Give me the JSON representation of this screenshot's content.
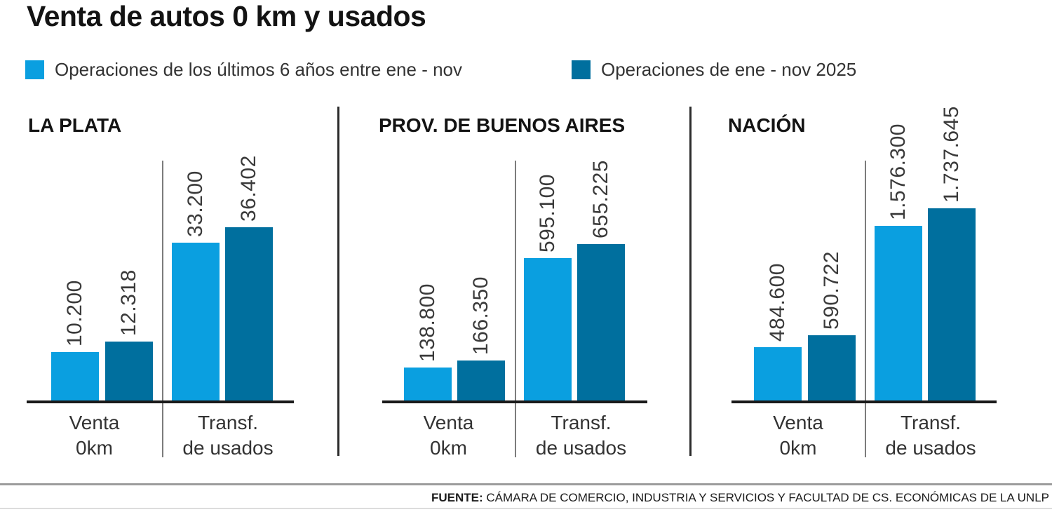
{
  "title": "Venta de autos 0 km y usados",
  "legend": [
    {
      "label": "Operaciones de los últimos 6 años entre ene - nov",
      "color": "#0a9fe0"
    },
    {
      "label": "Operaciones de ene - nov 2025",
      "color": "#006f9e"
    }
  ],
  "footer": {
    "source_label": "FUENTE:",
    "source_text": " CÁMARA DE COMERCIO, INDUSTRIA Y SERVICIOS Y FACULTAD DE CS. ECONÓMICAS DE LA UNLP"
  },
  "chart_data": {
    "type": "bar",
    "subtype": "grouped-bar-small-multiples",
    "title": "Venta de autos 0 km y usados",
    "legend_position": "top",
    "grid": false,
    "independent_scale_per_panel": true,
    "series_names": [
      "Operaciones de los últimos 6 años entre ene - nov",
      "Operaciones de ene - nov 2025"
    ],
    "panels": [
      {
        "title": "LA PLATA",
        "max_value": 36402,
        "groups": [
          {
            "category_lines": [
              "Venta",
              "0km"
            ],
            "values": [
              10200,
              12318
            ],
            "labels": [
              "10.200",
              "12.318"
            ]
          },
          {
            "category_lines": [
              "Transf.",
              "de usados"
            ],
            "values": [
              33200,
              36402
            ],
            "labels": [
              "33.200",
              "36.402"
            ]
          }
        ]
      },
      {
        "title": "PROV. DE BUENOS AIRES",
        "max_value": 655225,
        "groups": [
          {
            "category_lines": [
              "Venta",
              "0km"
            ],
            "values": [
              138800,
              166350
            ],
            "labels": [
              "138.800",
              "166.350"
            ]
          },
          {
            "category_lines": [
              "Transf.",
              "de usados"
            ],
            "values": [
              595100,
              655225
            ],
            "labels": [
              "595.100",
              "655.225"
            ]
          }
        ]
      },
      {
        "title": "NACIÓN",
        "max_value": 1737645,
        "groups": [
          {
            "category_lines": [
              "Venta",
              "0km"
            ],
            "values": [
              484600,
              590722
            ],
            "labels": [
              "484.600",
              "590.722"
            ]
          },
          {
            "category_lines": [
              "Transf.",
              "de usados"
            ],
            "values": [
              1576300,
              1737645
            ],
            "labels": [
              "1.576.300",
              "1.737.645"
            ]
          }
        ]
      }
    ]
  }
}
